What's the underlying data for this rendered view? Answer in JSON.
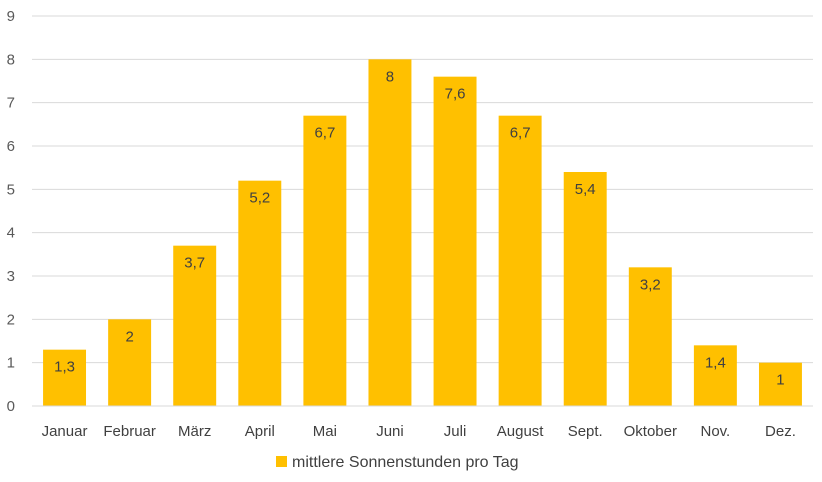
{
  "chart_data": {
    "type": "bar",
    "categories": [
      "Januar",
      "Februar",
      "März",
      "April",
      "Mai",
      "Juni",
      "Juli",
      "August",
      "Sept.",
      "Oktober",
      "Nov.",
      "Dez."
    ],
    "series": [
      {
        "name": "mittlere Sonnenstunden pro Tag",
        "values": [
          1.3,
          2,
          3.7,
          5.2,
          6.7,
          8,
          7.6,
          6.7,
          5.4,
          3.2,
          1.4,
          1
        ],
        "value_labels": [
          "1,3",
          "2",
          "3,7",
          "5,2",
          "6,7",
          "8",
          "7,6",
          "6,7",
          "5,4",
          "3,2",
          "1,4",
          "1"
        ],
        "color": "#FFC000"
      }
    ],
    "ylim": [
      0,
      9
    ],
    "yticks": [
      "0",
      "1",
      "2",
      "3",
      "4",
      "5",
      "6",
      "7",
      "8",
      "9"
    ],
    "grid": true,
    "gridColor": "#d9d9d9",
    "legend": "bottom",
    "title": "",
    "xlabel": "",
    "ylabel": ""
  }
}
